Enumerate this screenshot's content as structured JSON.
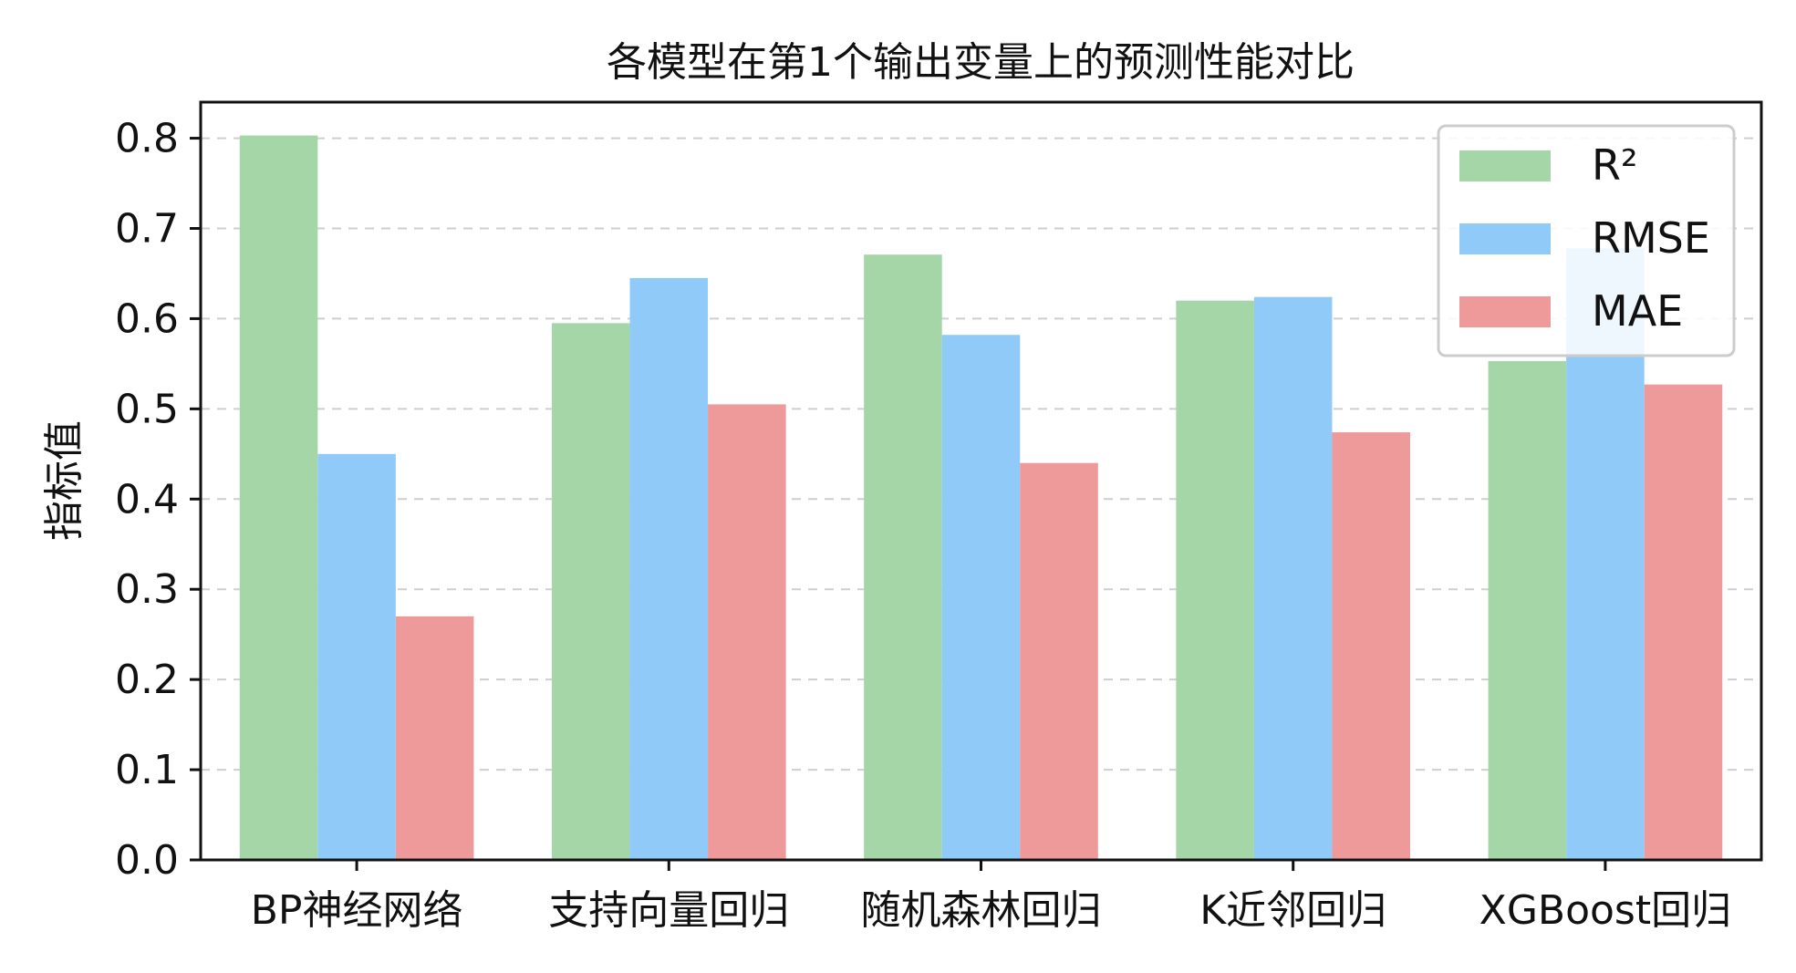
{
  "chart_data": {
    "type": "bar",
    "title": "各模型在第1个输出变量上的预测性能对比",
    "xlabel": "",
    "ylabel": "指标值",
    "ylim": [
      0,
      0.84
    ],
    "yticks": [
      "0.0",
      "0.1",
      "0.2",
      "0.3",
      "0.4",
      "0.5",
      "0.6",
      "0.7",
      "0.8"
    ],
    "grid": "y-dashed",
    "legend_position": "top-right",
    "categories": [
      "BP神经网络",
      "支持向量回归",
      "随机森林回归",
      "K近邻回归",
      "XGBoost回归"
    ],
    "series": [
      {
        "name": "R²",
        "color": "#a5d6a7",
        "values": [
          0.803,
          0.595,
          0.671,
          0.62,
          0.553
        ]
      },
      {
        "name": "RMSE",
        "color": "#90caf9",
        "values": [
          0.45,
          0.645,
          0.582,
          0.624,
          0.678
        ]
      },
      {
        "name": "MAE",
        "color": "#ef9a9a",
        "values": [
          0.27,
          0.505,
          0.44,
          0.474,
          0.527
        ]
      }
    ]
  }
}
